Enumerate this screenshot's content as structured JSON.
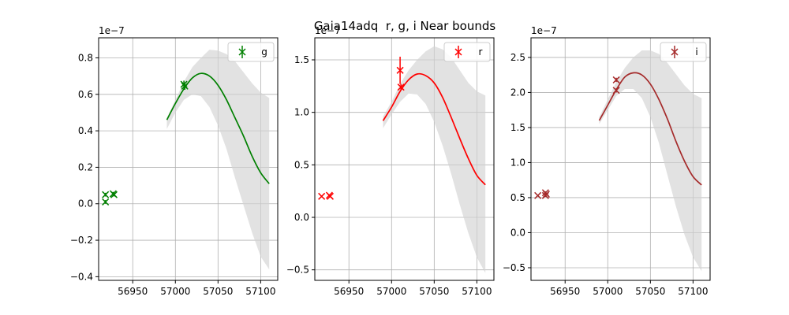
{
  "figure": {
    "title": "Gaia14adq  r, g, i Near bounds"
  },
  "chart_data": [
    {
      "type": "line",
      "title": "",
      "xlabel": "",
      "ylabel": "",
      "offset_text": "1e−7",
      "xlim": [
        56910,
        57120
      ],
      "ylim": [
        -0.42,
        0.91
      ],
      "xticks": [
        56950,
        57000,
        57050,
        57100
      ],
      "xtick_labels": [
        "56950",
        "57000",
        "57050",
        "57100"
      ],
      "yticks": [
        -0.4,
        -0.2,
        0.0,
        0.2,
        0.4,
        0.6,
        0.8
      ],
      "ytick_labels": [
        "−0.4",
        "−0.2",
        "0.0",
        "0.2",
        "0.4",
        "0.6",
        "0.8"
      ],
      "grid": true,
      "legend": {
        "position": "top-right",
        "label": "g"
      },
      "color": "#008000",
      "model": {
        "x": [
          56990,
          57000,
          57010,
          57020,
          57030,
          57040,
          57050,
          57060,
          57070,
          57080,
          57090,
          57100,
          57110
        ],
        "y": [
          0.46,
          0.55,
          0.63,
          0.69,
          0.715,
          0.7,
          0.65,
          0.57,
          0.47,
          0.37,
          0.26,
          0.17,
          0.11
        ],
        "upper": [
          0.47,
          0.57,
          0.67,
          0.75,
          0.8,
          0.845,
          0.84,
          0.82,
          0.78,
          0.72,
          0.66,
          0.61,
          0.58
        ],
        "lower": [
          0.41,
          0.5,
          0.57,
          0.6,
          0.59,
          0.53,
          0.43,
          0.3,
          0.14,
          -0.01,
          -0.16,
          -0.29,
          -0.36
        ]
      },
      "points": [
        {
          "x": 56918,
          "y": 0.05,
          "yerr": 0.01
        },
        {
          "x": 56918,
          "y": 0.01,
          "yerr": 0.01
        },
        {
          "x": 56927,
          "y": 0.055,
          "yerr": 0.01
        },
        {
          "x": 56928,
          "y": 0.05,
          "yerr": 0.01
        },
        {
          "x": 57010,
          "y": 0.655,
          "yerr": 0.02
        },
        {
          "x": 57011,
          "y": 0.645,
          "yerr": 0.02
        }
      ]
    },
    {
      "type": "line",
      "title": "",
      "xlabel": "",
      "ylabel": "",
      "offset_text": "1e−7",
      "xlim": [
        56910,
        57120
      ],
      "ylim": [
        -0.6,
        1.71
      ],
      "xticks": [
        56950,
        57000,
        57050,
        57100
      ],
      "xtick_labels": [
        "56950",
        "57000",
        "57050",
        "57100"
      ],
      "yticks": [
        -0.5,
        0.0,
        0.5,
        1.0,
        1.5
      ],
      "ytick_labels": [
        "−0.5",
        "0.0",
        "0.5",
        "1.0",
        "1.5"
      ],
      "grid": true,
      "legend": {
        "position": "top-right",
        "label": "r"
      },
      "color": "#ff0000",
      "model": {
        "x": [
          56990,
          57000,
          57010,
          57020,
          57030,
          57040,
          57050,
          57060,
          57070,
          57080,
          57090,
          57100,
          57110
        ],
        "y": [
          0.92,
          1.05,
          1.2,
          1.31,
          1.365,
          1.35,
          1.28,
          1.14,
          0.95,
          0.75,
          0.56,
          0.4,
          0.31
        ],
        "upper": [
          0.96,
          1.1,
          1.27,
          1.4,
          1.5,
          1.58,
          1.63,
          1.6,
          1.52,
          1.4,
          1.28,
          1.2,
          1.16
        ],
        "lower": [
          0.85,
          0.98,
          1.1,
          1.18,
          1.17,
          1.08,
          0.91,
          0.68,
          0.41,
          0.12,
          -0.15,
          -0.38,
          -0.53
        ]
      },
      "points": [
        {
          "x": 56918,
          "y": 0.2,
          "yerr": 0.01
        },
        {
          "x": 56927,
          "y": 0.21,
          "yerr": 0.01
        },
        {
          "x": 56928,
          "y": 0.2,
          "yerr": 0.01
        },
        {
          "x": 57010,
          "y": 1.4,
          "yerr": 0.13
        },
        {
          "x": 57011,
          "y": 1.24,
          "yerr": 0.03
        }
      ]
    },
    {
      "type": "line",
      "title": "",
      "xlabel": "",
      "ylabel": "",
      "offset_text": "1e−7",
      "xlim": [
        56910,
        57120
      ],
      "ylim": [
        -0.68,
        2.78
      ],
      "xticks": [
        56950,
        57000,
        57050,
        57100
      ],
      "xtick_labels": [
        "56950",
        "57000",
        "57050",
        "57100"
      ],
      "yticks": [
        -0.5,
        0.0,
        0.5,
        1.0,
        1.5,
        2.0,
        2.5
      ],
      "ytick_labels": [
        "−0.5",
        "0.0",
        "0.5",
        "1.0",
        "1.5",
        "2.0",
        "2.5"
      ],
      "grid": true,
      "legend": {
        "position": "top-right",
        "label": "i"
      },
      "color": "#a52a2a",
      "model": {
        "x": [
          56990,
          57000,
          57010,
          57020,
          57030,
          57040,
          57050,
          57060,
          57070,
          57080,
          57090,
          57100,
          57110
        ],
        "y": [
          1.6,
          1.82,
          2.04,
          2.22,
          2.28,
          2.25,
          2.12,
          1.9,
          1.62,
          1.3,
          1.02,
          0.8,
          0.68
        ],
        "upper": [
          1.65,
          1.9,
          2.15,
          2.35,
          2.5,
          2.6,
          2.6,
          2.55,
          2.42,
          2.26,
          2.1,
          1.98,
          1.92
        ],
        "lower": [
          1.55,
          1.75,
          1.95,
          2.05,
          2.05,
          1.92,
          1.65,
          1.28,
          0.82,
          0.37,
          -0.03,
          -0.35,
          -0.55
        ]
      },
      "points": [
        {
          "x": 56918,
          "y": 0.53,
          "yerr": 0.01
        },
        {
          "x": 56927,
          "y": 0.57,
          "yerr": 0.02
        },
        {
          "x": 56927,
          "y": 0.53,
          "yerr": 0.02
        },
        {
          "x": 56928,
          "y": 0.55,
          "yerr": 0.02
        },
        {
          "x": 57010,
          "y": 2.18,
          "yerr": 0.03
        },
        {
          "x": 57010,
          "y": 2.03,
          "yerr": 0.03
        }
      ]
    }
  ]
}
